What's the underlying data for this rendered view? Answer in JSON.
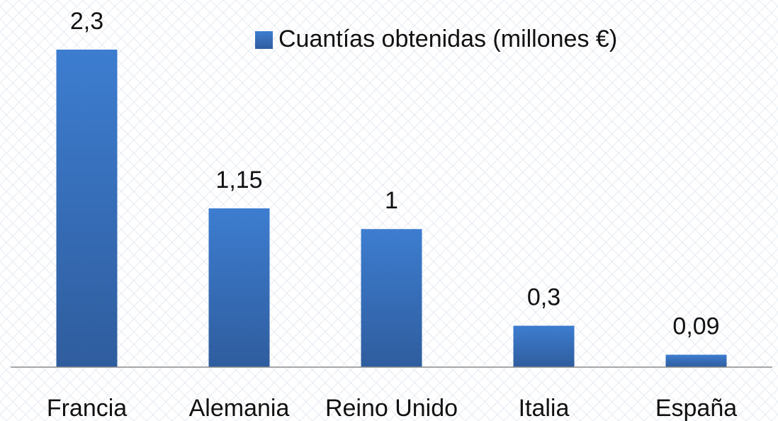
{
  "chart_data": {
    "type": "bar",
    "categories": [
      "Francia",
      "Alemania",
      "Reino Unido",
      "Italia",
      "España"
    ],
    "series": [
      {
        "name": "Cuantías obtenidas (millones €)",
        "color": "#3a72c0",
        "values": [
          2.3,
          1.15,
          1,
          0.3,
          0.09
        ],
        "value_labels": [
          "2,3",
          "1,15",
          "1",
          "0,3",
          "0,09"
        ]
      }
    ],
    "legend": "top-right"
  }
}
